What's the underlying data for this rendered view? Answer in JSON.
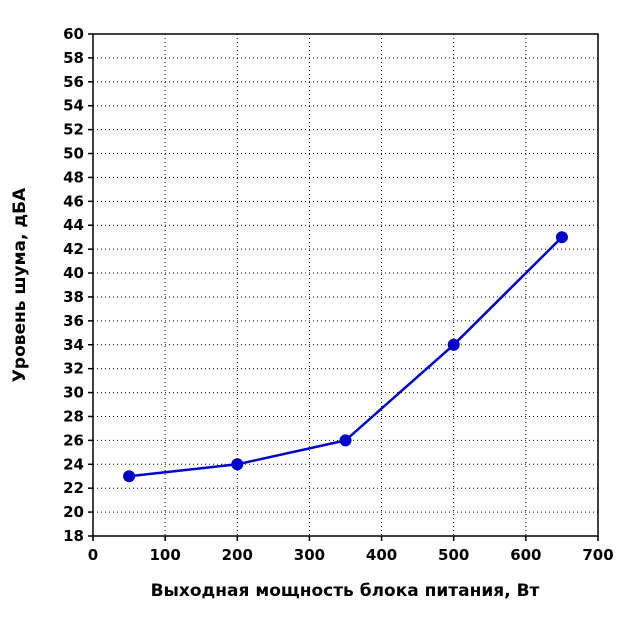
{
  "chart_data": {
    "type": "line",
    "title": "",
    "xlabel": "Выходная мощность блока питания, Вт",
    "ylabel": "Уровень шума, дБА",
    "xlim": [
      0,
      700
    ],
    "ylim": [
      18,
      60
    ],
    "xticks": [
      0,
      100,
      200,
      300,
      400,
      500,
      600,
      700
    ],
    "yticks": [
      18,
      20,
      22,
      24,
      26,
      28,
      30,
      32,
      34,
      36,
      38,
      40,
      42,
      44,
      46,
      48,
      50,
      52,
      54,
      56,
      58,
      60
    ],
    "grid": true,
    "grid_style": "dotted",
    "series": [
      {
        "color": "#0000cc",
        "x": [
          50,
          200,
          350,
          500,
          650
        ],
        "y": [
          23,
          24,
          26,
          34,
          43
        ]
      }
    ]
  }
}
